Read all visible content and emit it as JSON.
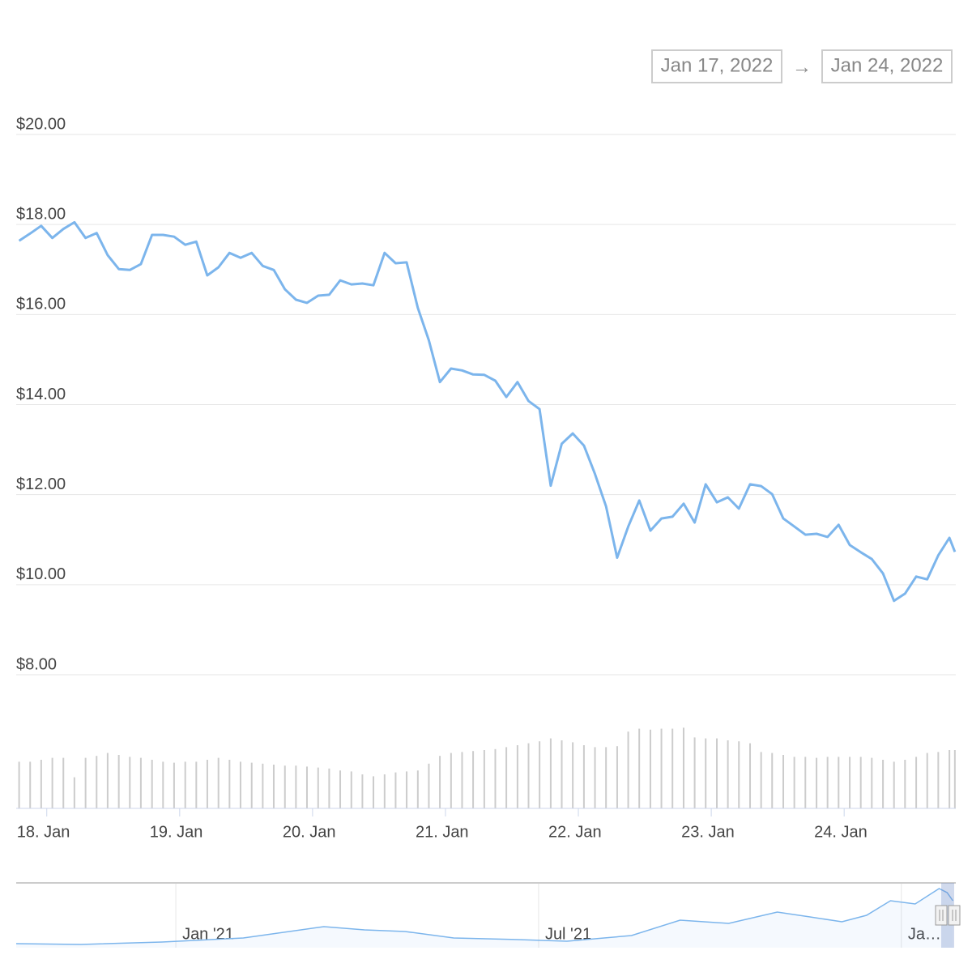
{
  "range_selector": {
    "from": "Jan 17, 2022",
    "separator": "→",
    "to": "Jan 24, 2022"
  },
  "chart_data": {
    "type": "line",
    "color": "#7cb5ec",
    "grid": true,
    "x": [
      17.792,
      17.875,
      17.958,
      18.042,
      18.125,
      18.208,
      18.292,
      18.375,
      18.458,
      18.542,
      18.625,
      18.708,
      18.792,
      18.875,
      18.958,
      19.042,
      19.125,
      19.208,
      19.292,
      19.375,
      19.458,
      19.542,
      19.625,
      19.708,
      19.792,
      19.875,
      19.958,
      20.042,
      20.125,
      20.208,
      20.292,
      20.375,
      20.458,
      20.542,
      20.625,
      20.708,
      20.792,
      20.875,
      20.958,
      21.042,
      21.125,
      21.208,
      21.292,
      21.375,
      21.458,
      21.542,
      21.625,
      21.708,
      21.792,
      21.875,
      21.958,
      22.042,
      22.125,
      22.208,
      22.292,
      22.375,
      22.458,
      22.542,
      22.625,
      22.708,
      22.792,
      22.875,
      22.958,
      23.042,
      23.125,
      23.208,
      23.292,
      23.375,
      23.458,
      23.542,
      23.625,
      23.708,
      23.792,
      23.875,
      23.958,
      24.042,
      24.125,
      24.208,
      24.292,
      24.375,
      24.458,
      24.542,
      24.625,
      24.708,
      24.792,
      24.833
    ],
    "values": [
      17.64,
      17.8,
      17.97,
      17.7,
      17.9,
      18.05,
      17.7,
      17.81,
      17.32,
      17.01,
      16.99,
      17.12,
      17.77,
      17.77,
      17.73,
      17.55,
      17.62,
      16.87,
      17.05,
      17.37,
      17.26,
      17.37,
      17.08,
      16.99,
      16.56,
      16.33,
      16.26,
      16.42,
      16.44,
      16.76,
      16.67,
      16.69,
      16.65,
      17.37,
      17.14,
      17.16,
      16.15,
      15.43,
      14.5,
      14.8,
      14.76,
      14.67,
      14.66,
      14.53,
      14.17,
      14.5,
      14.08,
      13.9,
      12.2,
      13.13,
      13.36,
      13.09,
      12.46,
      11.74,
      10.6,
      11.29,
      11.87,
      11.2,
      11.47,
      11.51,
      11.8,
      11.38,
      12.23,
      11.83,
      11.94,
      11.69,
      12.23,
      12.19,
      12.01,
      11.47,
      11.29,
      11.11,
      11.13,
      11.06,
      11.33,
      10.88,
      10.72,
      10.57,
      10.25,
      9.64,
      9.8,
      10.18,
      10.12,
      10.65,
      11.04,
      10.73
    ],
    "xlim": [
      17.77,
      24.84
    ],
    "xticks": [
      {
        "value": 18,
        "label": "18. Jan"
      },
      {
        "value": 19,
        "label": "19. Jan"
      },
      {
        "value": 20,
        "label": "20. Jan"
      },
      {
        "value": 21,
        "label": "21. Jan"
      },
      {
        "value": 22,
        "label": "22. Jan"
      },
      {
        "value": 23,
        "label": "23. Jan"
      },
      {
        "value": 24,
        "label": "24. Jan"
      }
    ],
    "ylim": [
      8,
      20
    ],
    "yticks": [
      {
        "value": 8,
        "label": "$8.00"
      },
      {
        "value": 10,
        "label": "$10.00"
      },
      {
        "value": 12,
        "label": "$12.00"
      },
      {
        "value": 14,
        "label": "$14.00"
      },
      {
        "value": 16,
        "label": "$16.00"
      },
      {
        "value": 18,
        "label": "$18.00"
      },
      {
        "value": 20,
        "label": "$20.00"
      }
    ],
    "volume": {
      "color": "#cccccc",
      "ylim": [
        0,
        100
      ],
      "values": [
        48,
        48,
        50,
        52,
        52,
        32,
        52,
        54,
        57,
        55,
        53,
        52,
        50,
        48,
        47,
        48,
        48,
        50,
        52,
        50,
        48,
        47,
        46,
        45,
        44,
        44,
        43,
        42,
        41,
        39,
        38,
        35,
        33,
        35,
        37,
        38,
        39,
        46,
        54,
        57,
        58,
        59,
        60,
        61,
        63,
        65,
        67,
        69,
        72,
        70,
        68,
        65,
        63,
        63,
        64,
        79,
        82,
        81,
        82,
        82,
        83,
        73,
        72,
        72,
        70,
        69,
        67,
        58,
        57,
        55,
        53,
        53,
        52,
        53,
        53,
        53,
        53,
        52,
        50,
        48,
        50,
        53,
        57,
        58,
        60,
        60
      ]
    },
    "navigator": {
      "x": [
        2020.78,
        2020.869,
        2020.981,
        2021.093,
        2021.204,
        2021.26,
        2021.316,
        2021.383,
        2021.472,
        2021.539,
        2021.628,
        2021.695,
        2021.762,
        2021.829,
        2021.874,
        2021.918,
        2021.952,
        2021.985,
        2022.019,
        2022.052,
        2022.063,
        2022.071
      ],
      "values": [
        1.25,
        1,
        1.75,
        3,
        6.5,
        5.5,
        5,
        3,
        2.5,
        2,
        3.75,
        8.5,
        7.5,
        11,
        9.5,
        8,
        10,
        14.5,
        13.5,
        18.25,
        17,
        14.5
      ],
      "xlim": [
        2020.78,
        2022.075
      ],
      "ylim": [
        0,
        20
      ],
      "xticks": [
        {
          "value": 2021,
          "label": "Jan '21"
        },
        {
          "value": 2021.5,
          "label": "Jul '21"
        },
        {
          "value": 2022,
          "label": "Ja…"
        }
      ]
    }
  }
}
